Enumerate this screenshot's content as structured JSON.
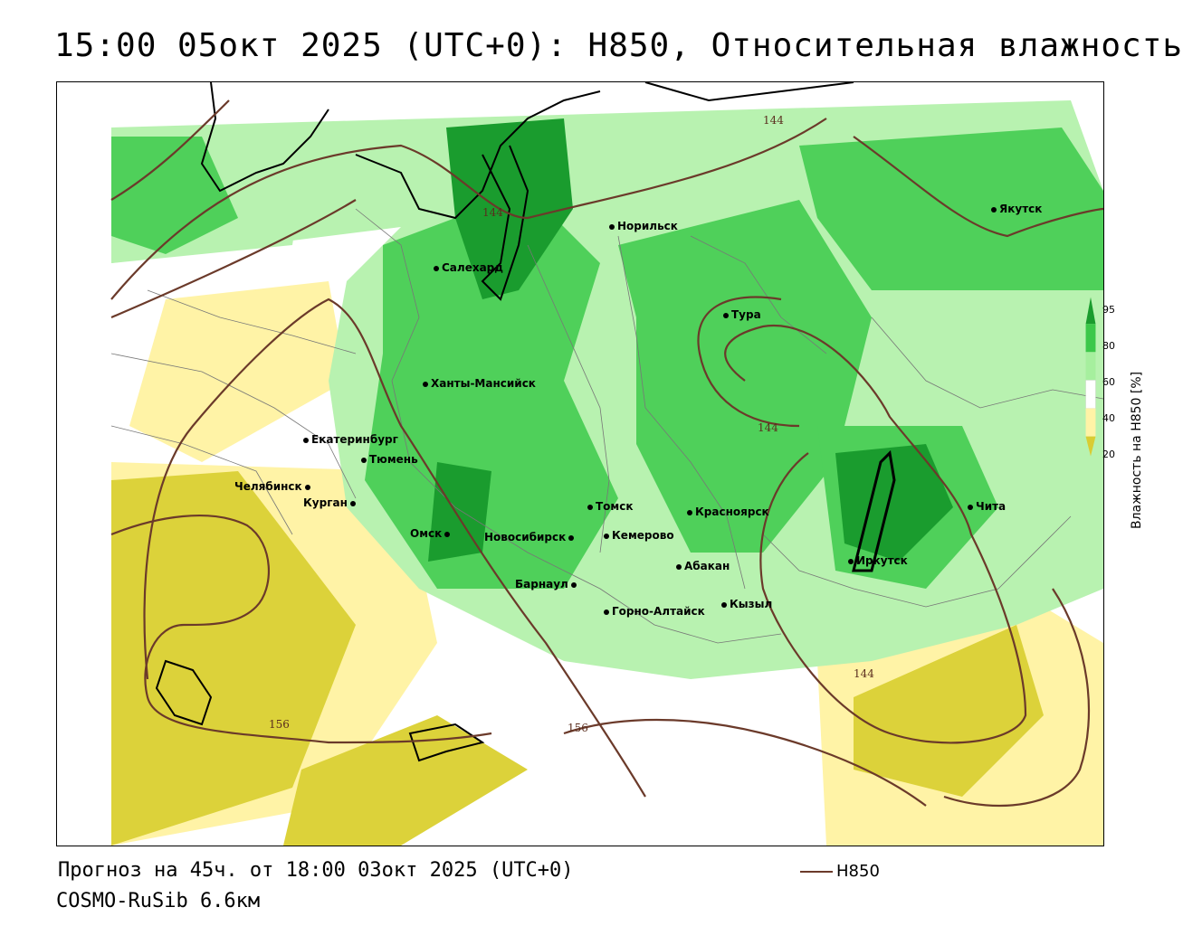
{
  "header": {
    "title": "15:00 05окт 2025 (UTC+0): H850, Относительная влажность"
  },
  "legend": {
    "axis_label": "Влажность на H850 [%]",
    "ticks": [
      "95",
      "80",
      "60",
      "40",
      "20"
    ],
    "colors": [
      "#1a9c2e",
      "#3cc84a",
      "#a6ef9e",
      "#ffffff",
      "#fff3a6",
      "#d9cc33"
    ]
  },
  "contour_legend": {
    "label": "H850",
    "color": "#6b3a2a"
  },
  "isoline_labels": [
    "144",
    "144",
    "144",
    "144",
    "156",
    "156"
  ],
  "cities": [
    {
      "name": "Якутск"
    },
    {
      "name": "Норильск"
    },
    {
      "name": "Салехард"
    },
    {
      "name": "Тура"
    },
    {
      "name": "Ханты-Мансийск"
    },
    {
      "name": "Екатеринбург"
    },
    {
      "name": "Тюмень"
    },
    {
      "name": "Челябинск"
    },
    {
      "name": "Курган"
    },
    {
      "name": "Омск"
    },
    {
      "name": "Новосибирск"
    },
    {
      "name": "Томск"
    },
    {
      "name": "Кемерово"
    },
    {
      "name": "Красноярск"
    },
    {
      "name": "Абакан"
    },
    {
      "name": "Барнаул"
    },
    {
      "name": "Горно-Алтайск"
    },
    {
      "name": "Кызыл"
    },
    {
      "name": "Иркутск"
    },
    {
      "name": "Чита"
    }
  ],
  "footer": {
    "forecast": "Прогноз на 45ч. от 18:00 03окт 2025 (UTC+0)",
    "model": "COSMO-RuSib 6.6км"
  }
}
